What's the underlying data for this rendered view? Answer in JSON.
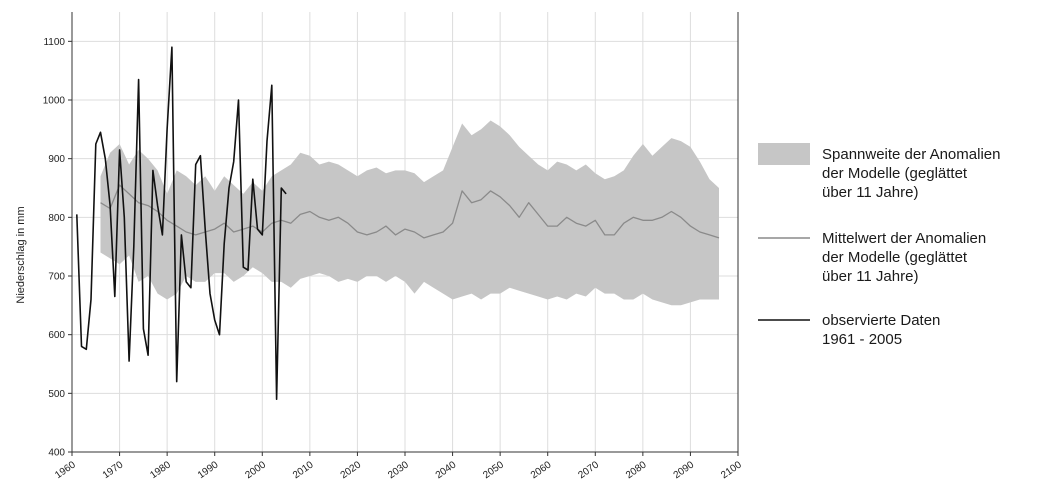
{
  "chart_data": {
    "type": "line",
    "title": "",
    "xlabel": "",
    "ylabel": "Niederschlag in mm",
    "xlim": [
      1960,
      2100
    ],
    "ylim": [
      400,
      1150
    ],
    "x_ticks": [
      1960,
      1970,
      1980,
      1990,
      2000,
      2010,
      2020,
      2030,
      2040,
      2050,
      2060,
      2070,
      2080,
      2090,
      2100
    ],
    "y_ticks": [
      400,
      500,
      600,
      700,
      800,
      900,
      1000,
      1100
    ],
    "grid": true,
    "legend_position": "right",
    "colors": {
      "band": "#c6c6c6",
      "mean": "#8a8a8a",
      "observed": "#111111",
      "grid": "#dddddd"
    },
    "band": {
      "name": "Spannweite der Anomalien der Modelle (geglättet über 11 Jahre)",
      "points": [
        [
          1966,
          740,
          870
        ],
        [
          1968,
          730,
          910
        ],
        [
          1970,
          720,
          925
        ],
        [
          1972,
          735,
          890
        ],
        [
          1974,
          690,
          915
        ],
        [
          1976,
          700,
          900
        ],
        [
          1978,
          670,
          880
        ],
        [
          1980,
          660,
          840
        ],
        [
          1982,
          670,
          880
        ],
        [
          1984,
          700,
          870
        ],
        [
          1986,
          690,
          855
        ],
        [
          1988,
          690,
          870
        ],
        [
          1990,
          705,
          845
        ],
        [
          1992,
          705,
          870
        ],
        [
          1994,
          690,
          855
        ],
        [
          1996,
          700,
          840
        ],
        [
          1998,
          715,
          860
        ],
        [
          2000,
          705,
          845
        ],
        [
          2002,
          690,
          870
        ],
        [
          2004,
          690,
          880
        ],
        [
          2006,
          680,
          890
        ],
        [
          2008,
          695,
          910
        ],
        [
          2010,
          700,
          905
        ],
        [
          2012,
          705,
          890
        ],
        [
          2014,
          700,
          895
        ],
        [
          2016,
          690,
          890
        ],
        [
          2018,
          695,
          880
        ],
        [
          2020,
          690,
          870
        ],
        [
          2022,
          700,
          880
        ],
        [
          2024,
          700,
          885
        ],
        [
          2026,
          690,
          875
        ],
        [
          2028,
          700,
          880
        ],
        [
          2030,
          690,
          880
        ],
        [
          2032,
          670,
          875
        ],
        [
          2034,
          690,
          860
        ],
        [
          2036,
          680,
          870
        ],
        [
          2038,
          670,
          880
        ],
        [
          2040,
          660,
          920
        ],
        [
          2042,
          665,
          960
        ],
        [
          2044,
          670,
          940
        ],
        [
          2046,
          660,
          950
        ],
        [
          2048,
          670,
          965
        ],
        [
          2050,
          670,
          955
        ],
        [
          2052,
          680,
          940
        ],
        [
          2054,
          675,
          920
        ],
        [
          2056,
          670,
          905
        ],
        [
          2058,
          665,
          890
        ],
        [
          2060,
          660,
          880
        ],
        [
          2062,
          665,
          895
        ],
        [
          2064,
          660,
          890
        ],
        [
          2066,
          670,
          880
        ],
        [
          2068,
          665,
          890
        ],
        [
          2070,
          680,
          875
        ],
        [
          2072,
          670,
          865
        ],
        [
          2074,
          670,
          870
        ],
        [
          2076,
          660,
          880
        ],
        [
          2078,
          660,
          905
        ],
        [
          2080,
          670,
          925
        ],
        [
          2082,
          660,
          905
        ],
        [
          2084,
          655,
          920
        ],
        [
          2086,
          650,
          935
        ],
        [
          2088,
          650,
          930
        ],
        [
          2090,
          655,
          920
        ],
        [
          2092,
          660,
          895
        ],
        [
          2094,
          660,
          865
        ],
        [
          2096,
          660,
          850
        ]
      ]
    },
    "series": [
      {
        "name": "Mittelwert der Anomalien der Modelle (geglättet über 11 Jahre)",
        "style": "mean",
        "x": [
          1966,
          1968,
          1970,
          1972,
          1974,
          1976,
          1978,
          1980,
          1982,
          1984,
          1986,
          1988,
          1990,
          1992,
          1994,
          1996,
          1998,
          2000,
          2002,
          2004,
          2006,
          2008,
          2010,
          2012,
          2014,
          2016,
          2018,
          2020,
          2022,
          2024,
          2026,
          2028,
          2030,
          2032,
          2034,
          2036,
          2038,
          2040,
          2042,
          2044,
          2046,
          2048,
          2050,
          2052,
          2054,
          2056,
          2058,
          2060,
          2062,
          2064,
          2066,
          2068,
          2070,
          2072,
          2074,
          2076,
          2078,
          2080,
          2082,
          2084,
          2086,
          2088,
          2090,
          2092,
          2094,
          2096
        ],
        "values": [
          825,
          815,
          855,
          840,
          825,
          820,
          810,
          795,
          785,
          775,
          770,
          775,
          780,
          790,
          775,
          780,
          785,
          775,
          790,
          795,
          790,
          805,
          810,
          800,
          795,
          800,
          790,
          775,
          770,
          775,
          785,
          770,
          780,
          775,
          765,
          770,
          775,
          790,
          845,
          825,
          830,
          845,
          835,
          820,
          800,
          825,
          805,
          785,
          785,
          800,
          790,
          785,
          795,
          770,
          770,
          790,
          800,
          795,
          795,
          800,
          810,
          800,
          785,
          775,
          770,
          765
        ]
      },
      {
        "name": "observierte Daten 1961 - 2005",
        "style": "observed",
        "x": [
          1961,
          1962,
          1963,
          1964,
          1965,
          1966,
          1967,
          1968,
          1969,
          1970,
          1971,
          1972,
          1973,
          1974,
          1975,
          1976,
          1977,
          1978,
          1979,
          1980,
          1981,
          1982,
          1983,
          1984,
          1985,
          1986,
          1987,
          1988,
          1989,
          1990,
          1991,
          1992,
          1993,
          1994,
          1995,
          1996,
          1997,
          1998,
          1999,
          2000,
          2001,
          2002,
          2003,
          2004,
          2005
        ],
        "values": [
          805,
          580,
          575,
          660,
          925,
          945,
          900,
          820,
          665,
          915,
          800,
          555,
          750,
          1035,
          610,
          565,
          880,
          820,
          770,
          950,
          1090,
          520,
          770,
          690,
          680,
          890,
          905,
          780,
          670,
          625,
          600,
          755,
          850,
          895,
          1000,
          715,
          710,
          865,
          780,
          770,
          930,
          1025,
          490,
          850,
          840
        ]
      }
    ],
    "legend": {
      "band_lines": [
        "Spannweite der Anomalien",
        "der Modelle (geglättet",
        "über 11 Jahre)"
      ],
      "mean_lines": [
        "Mittelwert der Anomalien",
        "der Modelle (geglättet",
        "über 11 Jahre)"
      ],
      "observed_lines": [
        "observierte Daten",
        "1961 - 2005"
      ]
    }
  }
}
